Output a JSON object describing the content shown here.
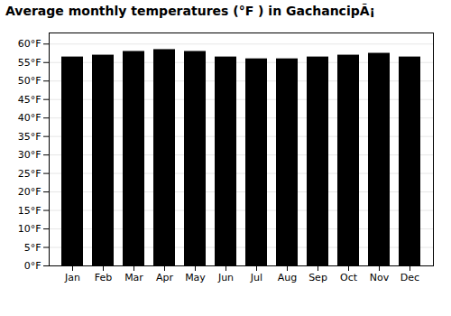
{
  "chart_data": {
    "type": "bar",
    "title": "Average monthly temperatures (°F ) in GachancipÃ¡",
    "categories": [
      "Jan",
      "Feb",
      "Mar",
      "Apr",
      "May",
      "Jun",
      "Jul",
      "Aug",
      "Sep",
      "Oct",
      "Nov",
      "Dec"
    ],
    "values": [
      56.5,
      57.0,
      58.0,
      58.5,
      58.0,
      56.5,
      56.0,
      56.0,
      56.5,
      57.0,
      57.5,
      56.5
    ],
    "ylim": [
      0,
      63
    ],
    "yticks": [
      {
        "value": 0,
        "label": "0°F"
      },
      {
        "value": 5,
        "label": "5°F"
      },
      {
        "value": 10,
        "label": "10°F"
      },
      {
        "value": 15,
        "label": "15°F"
      },
      {
        "value": 20,
        "label": "20°F"
      },
      {
        "value": 25,
        "label": "25°F"
      },
      {
        "value": 30,
        "label": "30°F"
      },
      {
        "value": 35,
        "label": "35°F"
      },
      {
        "value": 40,
        "label": "40°F"
      },
      {
        "value": 45,
        "label": "45°F"
      },
      {
        "value": 50,
        "label": "50°F"
      },
      {
        "value": 55,
        "label": "55°F"
      },
      {
        "value": 60,
        "label": "60°F"
      }
    ],
    "grid": true
  }
}
